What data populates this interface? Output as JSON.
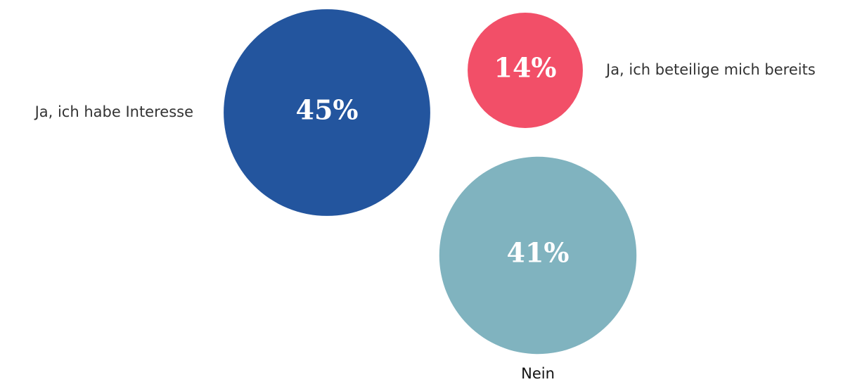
{
  "chart_data": {
    "type": "bubble",
    "categories": [
      "Ja, ich habe Interesse",
      "Ja, ich beteilige mich bereits",
      "Nein"
    ],
    "values": [
      45,
      14,
      41
    ],
    "value_labels": [
      "45%",
      "14%",
      "41%"
    ],
    "colors": [
      "#23559e",
      "#f24f68",
      "#80b3bf"
    ]
  }
}
